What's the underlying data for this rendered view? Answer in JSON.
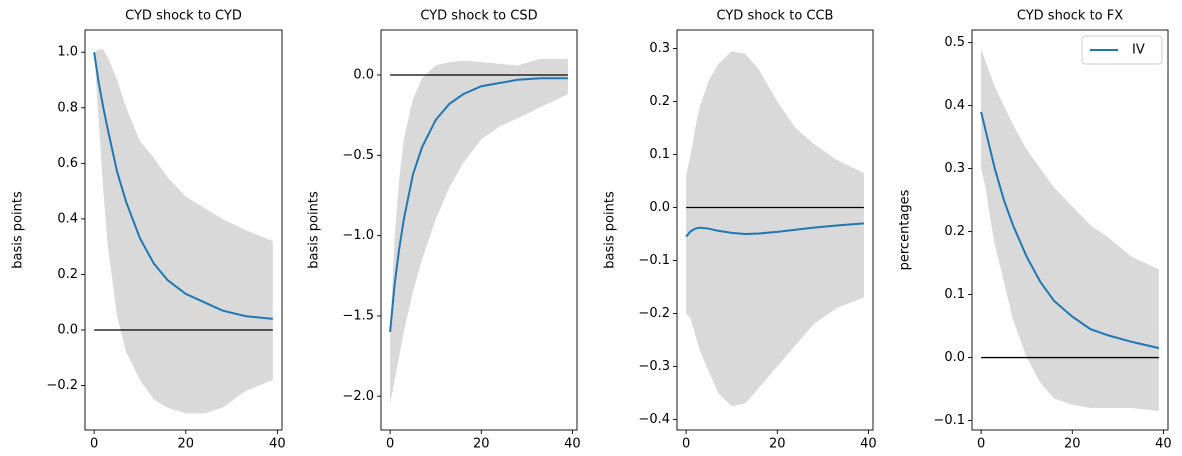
{
  "chart_data": [
    {
      "type": "line",
      "title": "CYD shock to CYD",
      "y_label": "basis points",
      "x": [
        0,
        1,
        2,
        3,
        5,
        7,
        10,
        13,
        16,
        20,
        24,
        28,
        33,
        39
      ],
      "series": [
        {
          "color": "#1f77b4",
          "values": [
            1.0,
            0.89,
            0.8,
            0.72,
            0.57,
            0.46,
            0.33,
            0.24,
            0.18,
            0.13,
            0.1,
            0.07,
            0.05,
            0.04
          ]
        }
      ],
      "band": {
        "color": "#d9d9d9",
        "upper": [
          1.0,
          1.01,
          1.01,
          0.98,
          0.9,
          0.8,
          0.68,
          0.62,
          0.55,
          0.48,
          0.44,
          0.4,
          0.36,
          0.32
        ],
        "lower": [
          1.0,
          0.75,
          0.5,
          0.3,
          0.05,
          -0.08,
          -0.18,
          -0.25,
          -0.28,
          -0.3,
          -0.3,
          -0.28,
          -0.22,
          -0.18
        ]
      },
      "hline": 0,
      "xlim": [
        -2,
        41
      ],
      "xticks": [
        0,
        20,
        40
      ],
      "ylim": [
        -0.36,
        1.08
      ],
      "yticks": [
        {
          "value": -0.2,
          "label": "−0.2"
        },
        {
          "value": 0,
          "label": "0.0"
        },
        0.2,
        0.4,
        0.6,
        0.8,
        {
          "value": 1,
          "label": "1.0"
        }
      ]
    },
    {
      "type": "line",
      "title": "CYD shock to CSD",
      "y_label": "basis points",
      "x": [
        0,
        1,
        2,
        3,
        5,
        7,
        10,
        13,
        16,
        20,
        24,
        28,
        33,
        39
      ],
      "series": [
        {
          "color": "#1f77b4",
          "values": [
            -1.6,
            -1.3,
            -1.08,
            -0.9,
            -0.62,
            -0.45,
            -0.28,
            -0.18,
            -0.12,
            -0.07,
            -0.05,
            -0.03,
            -0.02,
            -0.02
          ]
        }
      ],
      "band": {
        "color": "#d9d9d9",
        "upper": [
          -1.6,
          -1.0,
          -0.65,
          -0.4,
          -0.15,
          -0.02,
          0.06,
          0.08,
          0.09,
          0.08,
          0.07,
          0.06,
          0.1,
          0.1
        ],
        "lower": [
          -2.05,
          -1.9,
          -1.75,
          -1.6,
          -1.35,
          -1.15,
          -0.9,
          -0.7,
          -0.55,
          -0.4,
          -0.32,
          -0.27,
          -0.2,
          -0.12
        ]
      },
      "hline": 0,
      "xlim": [
        -2,
        41
      ],
      "xticks": [
        0,
        20,
        40
      ],
      "ylim": [
        -2.21,
        0.28
      ],
      "yticks": [
        {
          "value": -2,
          "label": "−2.0"
        },
        {
          "value": -1.5,
          "label": "−1.5"
        },
        {
          "value": -1,
          "label": "−1.0"
        },
        {
          "value": -0.5,
          "label": "−0.5"
        },
        {
          "value": 0,
          "label": "0.0"
        }
      ]
    },
    {
      "type": "line",
      "title": "CYD shock to CCB",
      "y_label": "basis points",
      "x": [
        0,
        1,
        2,
        3,
        5,
        7,
        10,
        13,
        16,
        20,
        24,
        28,
        33,
        39
      ],
      "series": [
        {
          "color": "#1f77b4",
          "values": [
            -0.055,
            -0.045,
            -0.04,
            -0.038,
            -0.04,
            -0.044,
            -0.048,
            -0.05,
            -0.049,
            -0.046,
            -0.042,
            -0.038,
            -0.034,
            -0.03
          ]
        }
      ],
      "band": {
        "color": "#d9d9d9",
        "upper": [
          0.06,
          0.1,
          0.15,
          0.19,
          0.24,
          0.27,
          0.295,
          0.29,
          0.26,
          0.2,
          0.15,
          0.12,
          0.09,
          0.065
        ],
        "lower": [
          -0.2,
          -0.21,
          -0.24,
          -0.27,
          -0.31,
          -0.35,
          -0.375,
          -0.37,
          -0.34,
          -0.3,
          -0.26,
          -0.22,
          -0.19,
          -0.17
        ]
      },
      "hline": 0,
      "xlim": [
        -2,
        41
      ],
      "xticks": [
        0,
        20,
        40
      ],
      "ylim": [
        -0.42,
        0.335
      ],
      "yticks": [
        {
          "value": -0.4,
          "label": "−0.4"
        },
        {
          "value": -0.3,
          "label": "−0.3"
        },
        {
          "value": -0.2,
          "label": "−0.2"
        },
        {
          "value": -0.1,
          "label": "−0.1"
        },
        {
          "value": 0,
          "label": "0.0"
        },
        0.1,
        0.2,
        0.3
      ]
    },
    {
      "type": "line",
      "title": "CYD shock to FX",
      "y_label": "percentages",
      "x": [
        0,
        1,
        2,
        3,
        5,
        7,
        10,
        13,
        16,
        20,
        24,
        28,
        33,
        39
      ],
      "series": [
        {
          "name": "IV",
          "color": "#1f77b4",
          "values": [
            0.39,
            0.36,
            0.33,
            0.3,
            0.25,
            0.21,
            0.16,
            0.12,
            0.09,
            0.065,
            0.045,
            0.035,
            0.025,
            0.015
          ]
        }
      ],
      "band": {
        "color": "#d9d9d9",
        "upper": [
          0.49,
          0.47,
          0.45,
          0.43,
          0.4,
          0.37,
          0.33,
          0.3,
          0.27,
          0.24,
          0.21,
          0.19,
          0.16,
          0.14
        ],
        "lower": [
          0.3,
          0.27,
          0.22,
          0.18,
          0.12,
          0.06,
          0.0,
          -0.04,
          -0.065,
          -0.075,
          -0.08,
          -0.08,
          -0.08,
          -0.085
        ]
      },
      "hline": 0,
      "legend": "upper right",
      "xlim": [
        -2,
        41
      ],
      "xticks": [
        0,
        20,
        40
      ],
      "ylim": [
        -0.115,
        0.52
      ],
      "yticks": [
        {
          "value": -0.1,
          "label": "−0.1"
        },
        {
          "value": 0,
          "label": "0.0"
        },
        0.1,
        0.2,
        0.3,
        0.4,
        0.5
      ]
    }
  ]
}
